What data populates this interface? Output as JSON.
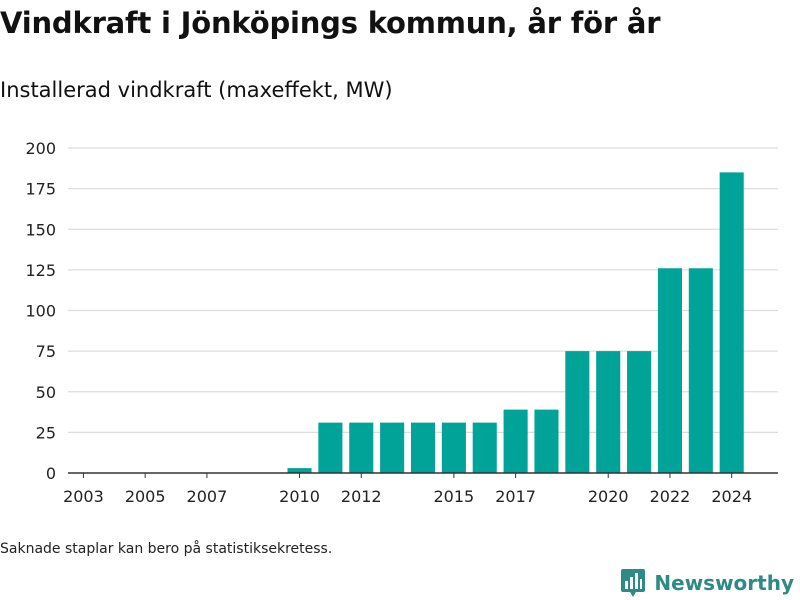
{
  "header": {
    "title": "Vindkraft i Jönköpings kommun, år för år",
    "subtitle": "Installerad vindkraft (maxeffekt, MW)"
  },
  "footer": {
    "note": "Saknade staplar kan bero på statistiksekretess.",
    "brand": "Newsworthy",
    "brand_icon": "bar-chart-logo-icon"
  },
  "colors": {
    "bar": "#00a398",
    "grid": "#dddddd",
    "axis": "#333333",
    "brand": "#2e8a84"
  },
  "chart_data": {
    "type": "bar",
    "categories": [
      "2003",
      "2004",
      "2005",
      "2006",
      "2007",
      "2008",
      "2009",
      "2010",
      "2011",
      "2012",
      "2013",
      "2014",
      "2015",
      "2016",
      "2017",
      "2018",
      "2019",
      "2020",
      "2021",
      "2022",
      "2023",
      "2024"
    ],
    "values": [
      null,
      null,
      null,
      null,
      null,
      null,
      null,
      3,
      31,
      31,
      31,
      31,
      31,
      31,
      39,
      39,
      75,
      75,
      75,
      126,
      126,
      185
    ],
    "x_tick_labels": [
      "2003",
      "2005",
      "2007",
      "2010",
      "2012",
      "2015",
      "2017",
      "2020",
      "2022",
      "2024"
    ],
    "y_ticks": [
      0,
      25,
      50,
      75,
      100,
      125,
      150,
      175,
      200
    ],
    "ylim": [
      0,
      200
    ],
    "xlim": [
      2002.5,
      2025.5
    ],
    "grid": true,
    "legend": "none"
  }
}
